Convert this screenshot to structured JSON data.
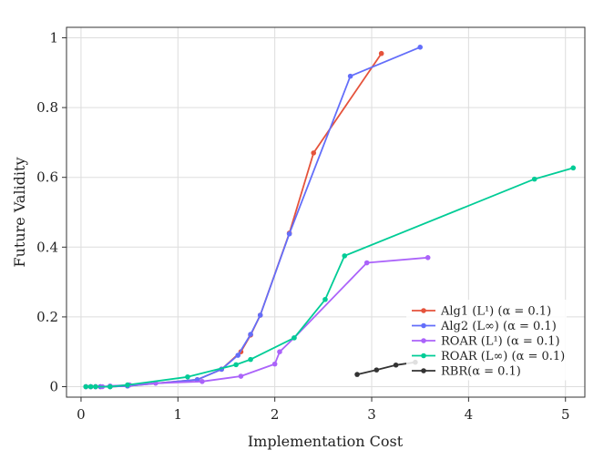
{
  "chart_data": {
    "type": "line",
    "xlabel": "Implementation Cost",
    "ylabel": "Future Validity",
    "xlim": [
      -0.15,
      5.2
    ],
    "ylim": [
      -0.03,
      1.03
    ],
    "xticks": [
      0,
      1,
      2,
      3,
      4,
      5
    ],
    "xtick_labels": [
      "0",
      "1",
      "2",
      "3",
      "4",
      "5"
    ],
    "yticks": [
      0,
      0.2,
      0.4,
      0.6,
      0.8,
      1
    ],
    "ytick_labels": [
      "0",
      "0.2",
      "0.4",
      "0.6",
      "0.8",
      "1"
    ],
    "grid": true,
    "legend_position": "lower-right",
    "series": [
      {
        "name": "Alg1 (L¹) (α = 0.1)",
        "color": "#e5533c",
        "x": [
          0.05,
          0.1,
          0.15,
          0.2,
          0.3,
          0.48,
          1.2,
          1.45,
          1.65,
          1.75,
          1.85,
          2.15,
          2.4,
          3.1
        ],
        "y": [
          0.0,
          0.0,
          0.0,
          0.0,
          0.0,
          0.002,
          0.02,
          0.05,
          0.1,
          0.148,
          0.205,
          0.44,
          0.67,
          0.955
        ]
      },
      {
        "name": "Alg2 (L∞) (α = 0.1)",
        "color": "#636efa",
        "x": [
          0.05,
          0.1,
          0.15,
          0.2,
          0.3,
          0.48,
          1.2,
          1.45,
          1.62,
          1.75,
          1.85,
          2.15,
          2.78,
          3.5
        ],
        "y": [
          0.0,
          0.0,
          0.0,
          0.0,
          0.0,
          0.002,
          0.02,
          0.05,
          0.09,
          0.15,
          0.205,
          0.438,
          0.89,
          0.973
        ]
      },
      {
        "name": "ROAR (L¹) (α = 0.1)",
        "color": "#ab63fa",
        "x": [
          0.05,
          0.1,
          0.15,
          0.22,
          0.3,
          0.5,
          0.77,
          1.25,
          1.65,
          2.0,
          2.05,
          2.2,
          2.95,
          3.58
        ],
        "y": [
          0.0,
          0.0,
          0.0,
          0.0,
          0.002,
          0.005,
          0.01,
          0.015,
          0.03,
          0.065,
          0.1,
          0.14,
          0.355,
          0.37
        ]
      },
      {
        "name": "ROAR (L∞) (α = 0.1)",
        "color": "#00cc96",
        "x": [
          0.05,
          0.1,
          0.15,
          0.3,
          0.48,
          1.1,
          1.6,
          1.75,
          2.2,
          2.52,
          2.72,
          4.68,
          5.08
        ],
        "y": [
          0.0,
          0.0,
          0.0,
          0.0,
          0.005,
          0.028,
          0.063,
          0.078,
          0.14,
          0.25,
          0.375,
          0.595,
          0.627
        ]
      },
      {
        "name": "RBR(α = 0.1)",
        "color": "#333333",
        "x": [
          2.85,
          3.05,
          3.25,
          3.45
        ],
        "y": [
          0.035,
          0.048,
          0.062,
          0.07
        ]
      }
    ]
  }
}
